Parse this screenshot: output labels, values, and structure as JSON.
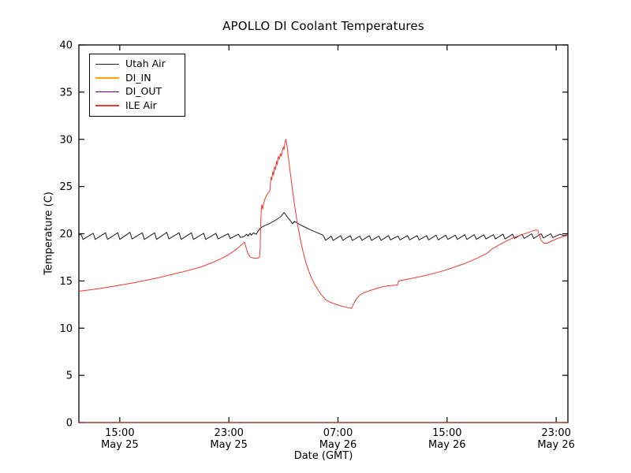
{
  "chart_data": {
    "type": "line",
    "title": "APOLLO DI Coolant Temperatures",
    "xlabel": "Date (GMT)",
    "ylabel": "Temperature (C)",
    "x_unit": "hours after May 25 12:00 GMT",
    "xlim": [
      0,
      35.86
    ],
    "ylim": [
      0,
      40
    ],
    "grid": false,
    "legend_position": "upper left",
    "yticks": [
      0,
      5,
      10,
      15,
      20,
      25,
      30,
      35,
      40
    ],
    "xticks": [
      {
        "t": 3,
        "time": "15:00",
        "date": "May 25"
      },
      {
        "t": 11,
        "time": "23:00",
        "date": "May 25"
      },
      {
        "t": 19,
        "time": "07:00",
        "date": "May 26"
      },
      {
        "t": 27,
        "time": "15:00",
        "date": "May 26"
      },
      {
        "t": 35,
        "time": "23:00",
        "date": "May 26"
      }
    ],
    "series": [
      {
        "name": "Utah Air",
        "color": "#1a1a1a",
        "width": 1.0,
        "opacity": 1,
        "points": [
          [
            0,
            19.8
          ],
          [
            0.15,
            20.0
          ],
          [
            0.3,
            19.4
          ],
          [
            1.05,
            20.05
          ],
          [
            1.2,
            19.4
          ],
          [
            1.95,
            20.1
          ],
          [
            2.1,
            19.4
          ],
          [
            2.85,
            20.1
          ],
          [
            3.0,
            19.4
          ],
          [
            3.75,
            20.15
          ],
          [
            3.9,
            19.45
          ],
          [
            4.65,
            20.1
          ],
          [
            4.8,
            19.4
          ],
          [
            5.55,
            20.1
          ],
          [
            5.7,
            19.4
          ],
          [
            6.45,
            20.15
          ],
          [
            6.6,
            19.45
          ],
          [
            7.35,
            20.1
          ],
          [
            7.5,
            19.4
          ],
          [
            8.25,
            20.1
          ],
          [
            8.4,
            19.4
          ],
          [
            9.15,
            20.05
          ],
          [
            9.3,
            19.4
          ],
          [
            10.05,
            20.05
          ],
          [
            10.2,
            19.45
          ],
          [
            10.95,
            20.0
          ],
          [
            11.1,
            19.5
          ],
          [
            11.7,
            19.95
          ],
          [
            11.85,
            19.6
          ],
          [
            12.1,
            19.7
          ],
          [
            12.3,
            19.95
          ],
          [
            12.4,
            19.75
          ],
          [
            12.55,
            20.05
          ],
          [
            12.65,
            19.85
          ],
          [
            12.8,
            20.1
          ],
          [
            13.0,
            19.95
          ],
          [
            13.3,
            20.6
          ],
          [
            13.6,
            20.85
          ],
          [
            14.0,
            21.1
          ],
          [
            14.5,
            21.5
          ],
          [
            14.8,
            21.8
          ],
          [
            15.05,
            22.25
          ],
          [
            15.3,
            21.75
          ],
          [
            15.55,
            21.3
          ],
          [
            15.65,
            21.05
          ],
          [
            15.8,
            21.3
          ],
          [
            16.1,
            21.05
          ],
          [
            16.5,
            20.75
          ],
          [
            17.0,
            20.4
          ],
          [
            17.5,
            20.1
          ],
          [
            17.9,
            19.85
          ],
          [
            18.1,
            19.3
          ],
          [
            18.5,
            19.75
          ],
          [
            18.65,
            19.3
          ],
          [
            19.2,
            19.8
          ],
          [
            19.35,
            19.3
          ],
          [
            19.9,
            19.8
          ],
          [
            20.05,
            19.3
          ],
          [
            20.6,
            19.75
          ],
          [
            20.75,
            19.3
          ],
          [
            21.3,
            19.8
          ],
          [
            21.45,
            19.3
          ],
          [
            22.0,
            19.75
          ],
          [
            22.15,
            19.3
          ],
          [
            22.7,
            19.8
          ],
          [
            22.85,
            19.35
          ],
          [
            23.4,
            19.75
          ],
          [
            23.55,
            19.35
          ],
          [
            24.1,
            19.8
          ],
          [
            24.25,
            19.35
          ],
          [
            24.8,
            19.8
          ],
          [
            24.95,
            19.35
          ],
          [
            25.5,
            19.8
          ],
          [
            25.65,
            19.35
          ],
          [
            26.2,
            19.85
          ],
          [
            26.35,
            19.35
          ],
          [
            26.9,
            19.85
          ],
          [
            27.05,
            19.4
          ],
          [
            27.6,
            19.85
          ],
          [
            27.75,
            19.4
          ],
          [
            28.3,
            19.9
          ],
          [
            28.45,
            19.4
          ],
          [
            29.0,
            19.9
          ],
          [
            29.15,
            19.4
          ],
          [
            29.7,
            19.9
          ],
          [
            29.85,
            19.45
          ],
          [
            30.4,
            19.9
          ],
          [
            30.55,
            19.45
          ],
          [
            31.1,
            19.95
          ],
          [
            31.25,
            19.45
          ],
          [
            31.8,
            19.95
          ],
          [
            31.95,
            19.5
          ],
          [
            32.5,
            19.95
          ],
          [
            32.65,
            19.5
          ],
          [
            33.2,
            20.0
          ],
          [
            33.35,
            19.5
          ],
          [
            33.9,
            20.0
          ],
          [
            34.05,
            19.55
          ],
          [
            34.6,
            20.0
          ],
          [
            34.75,
            19.6
          ],
          [
            35.3,
            19.95
          ],
          [
            35.55,
            19.8
          ],
          [
            35.86,
            19.9
          ]
        ]
      },
      {
        "name": "DI_IN",
        "color": "#ffa500",
        "width": 1.2,
        "opacity": 0.9,
        "points": [
          [
            0,
            0
          ],
          [
            35.86,
            0
          ]
        ]
      },
      {
        "name": "DI_OUT",
        "color": "#800080",
        "width": 1.2,
        "opacity": 0.55,
        "points": [
          [
            0,
            0
          ],
          [
            35.86,
            0
          ]
        ]
      },
      {
        "name": "ILE Air",
        "color": "#f03a30",
        "width": 1.0,
        "opacity": 1,
        "points": [
          [
            0,
            13.9
          ],
          [
            1,
            14.1
          ],
          [
            2,
            14.3
          ],
          [
            3,
            14.55
          ],
          [
            4,
            14.8
          ],
          [
            5,
            15.1
          ],
          [
            6,
            15.4
          ],
          [
            7,
            15.75
          ],
          [
            8,
            16.1
          ],
          [
            9,
            16.5
          ],
          [
            9.8,
            16.95
          ],
          [
            10.5,
            17.4
          ],
          [
            11.0,
            17.8
          ],
          [
            11.5,
            18.3
          ],
          [
            11.9,
            18.8
          ],
          [
            12.15,
            19.1
          ],
          [
            12.25,
            18.6
          ],
          [
            12.4,
            17.9
          ],
          [
            12.55,
            17.55
          ],
          [
            12.8,
            17.4
          ],
          [
            13.1,
            17.4
          ],
          [
            13.25,
            17.55
          ],
          [
            13.3,
            18.5
          ],
          [
            13.33,
            21.0
          ],
          [
            13.38,
            22.6
          ],
          [
            13.42,
            23.1
          ],
          [
            13.48,
            22.6
          ],
          [
            13.55,
            23.2
          ],
          [
            13.65,
            23.7
          ],
          [
            13.78,
            24.1
          ],
          [
            13.9,
            24.35
          ],
          [
            14.0,
            24.5
          ],
          [
            14.05,
            25.4
          ],
          [
            14.1,
            26.0
          ],
          [
            14.15,
            25.7
          ],
          [
            14.22,
            26.6
          ],
          [
            14.28,
            26.2
          ],
          [
            14.35,
            27.1
          ],
          [
            14.42,
            26.8
          ],
          [
            14.5,
            27.7
          ],
          [
            14.55,
            27.3
          ],
          [
            14.62,
            28.2
          ],
          [
            14.7,
            27.9
          ],
          [
            14.78,
            28.5
          ],
          [
            14.85,
            28.2
          ],
          [
            14.92,
            28.8
          ],
          [
            15.0,
            29.2
          ],
          [
            15.05,
            28.9
          ],
          [
            15.1,
            29.6
          ],
          [
            15.18,
            30.0
          ],
          [
            15.25,
            29.5
          ],
          [
            15.35,
            28.2
          ],
          [
            15.5,
            26.5
          ],
          [
            15.65,
            24.8
          ],
          [
            15.8,
            23.2
          ],
          [
            16.0,
            21.3
          ],
          [
            16.2,
            19.7
          ],
          [
            16.45,
            18.0
          ],
          [
            16.7,
            16.7
          ],
          [
            17.0,
            15.5
          ],
          [
            17.3,
            14.6
          ],
          [
            17.7,
            13.7
          ],
          [
            18.1,
            13.0
          ],
          [
            18.5,
            12.7
          ],
          [
            18.8,
            12.55
          ],
          [
            19.1,
            12.4
          ],
          [
            19.5,
            12.25
          ],
          [
            19.8,
            12.15
          ],
          [
            20.0,
            12.1
          ],
          [
            20.15,
            12.6
          ],
          [
            20.35,
            13.1
          ],
          [
            20.6,
            13.5
          ],
          [
            20.9,
            13.75
          ],
          [
            21.3,
            13.95
          ],
          [
            21.8,
            14.2
          ],
          [
            22.3,
            14.4
          ],
          [
            22.8,
            14.5
          ],
          [
            23.2,
            14.55
          ],
          [
            23.35,
            14.55
          ],
          [
            23.45,
            15.0
          ],
          [
            23.8,
            15.1
          ],
          [
            24.5,
            15.3
          ],
          [
            25.2,
            15.5
          ],
          [
            26.0,
            15.8
          ],
          [
            26.8,
            16.1
          ],
          [
            27.6,
            16.5
          ],
          [
            28.4,
            16.9
          ],
          [
            29.2,
            17.4
          ],
          [
            29.9,
            17.9
          ],
          [
            30.3,
            18.4
          ],
          [
            30.8,
            18.8
          ],
          [
            31.3,
            19.2
          ],
          [
            31.9,
            19.6
          ],
          [
            32.5,
            19.9
          ],
          [
            33.0,
            20.15
          ],
          [
            33.5,
            20.4
          ],
          [
            33.65,
            20.35
          ],
          [
            33.9,
            19.3
          ],
          [
            34.1,
            19.0
          ],
          [
            34.35,
            19.0
          ],
          [
            34.7,
            19.25
          ],
          [
            35.1,
            19.5
          ],
          [
            35.5,
            19.7
          ],
          [
            35.86,
            19.85
          ]
        ]
      }
    ]
  }
}
